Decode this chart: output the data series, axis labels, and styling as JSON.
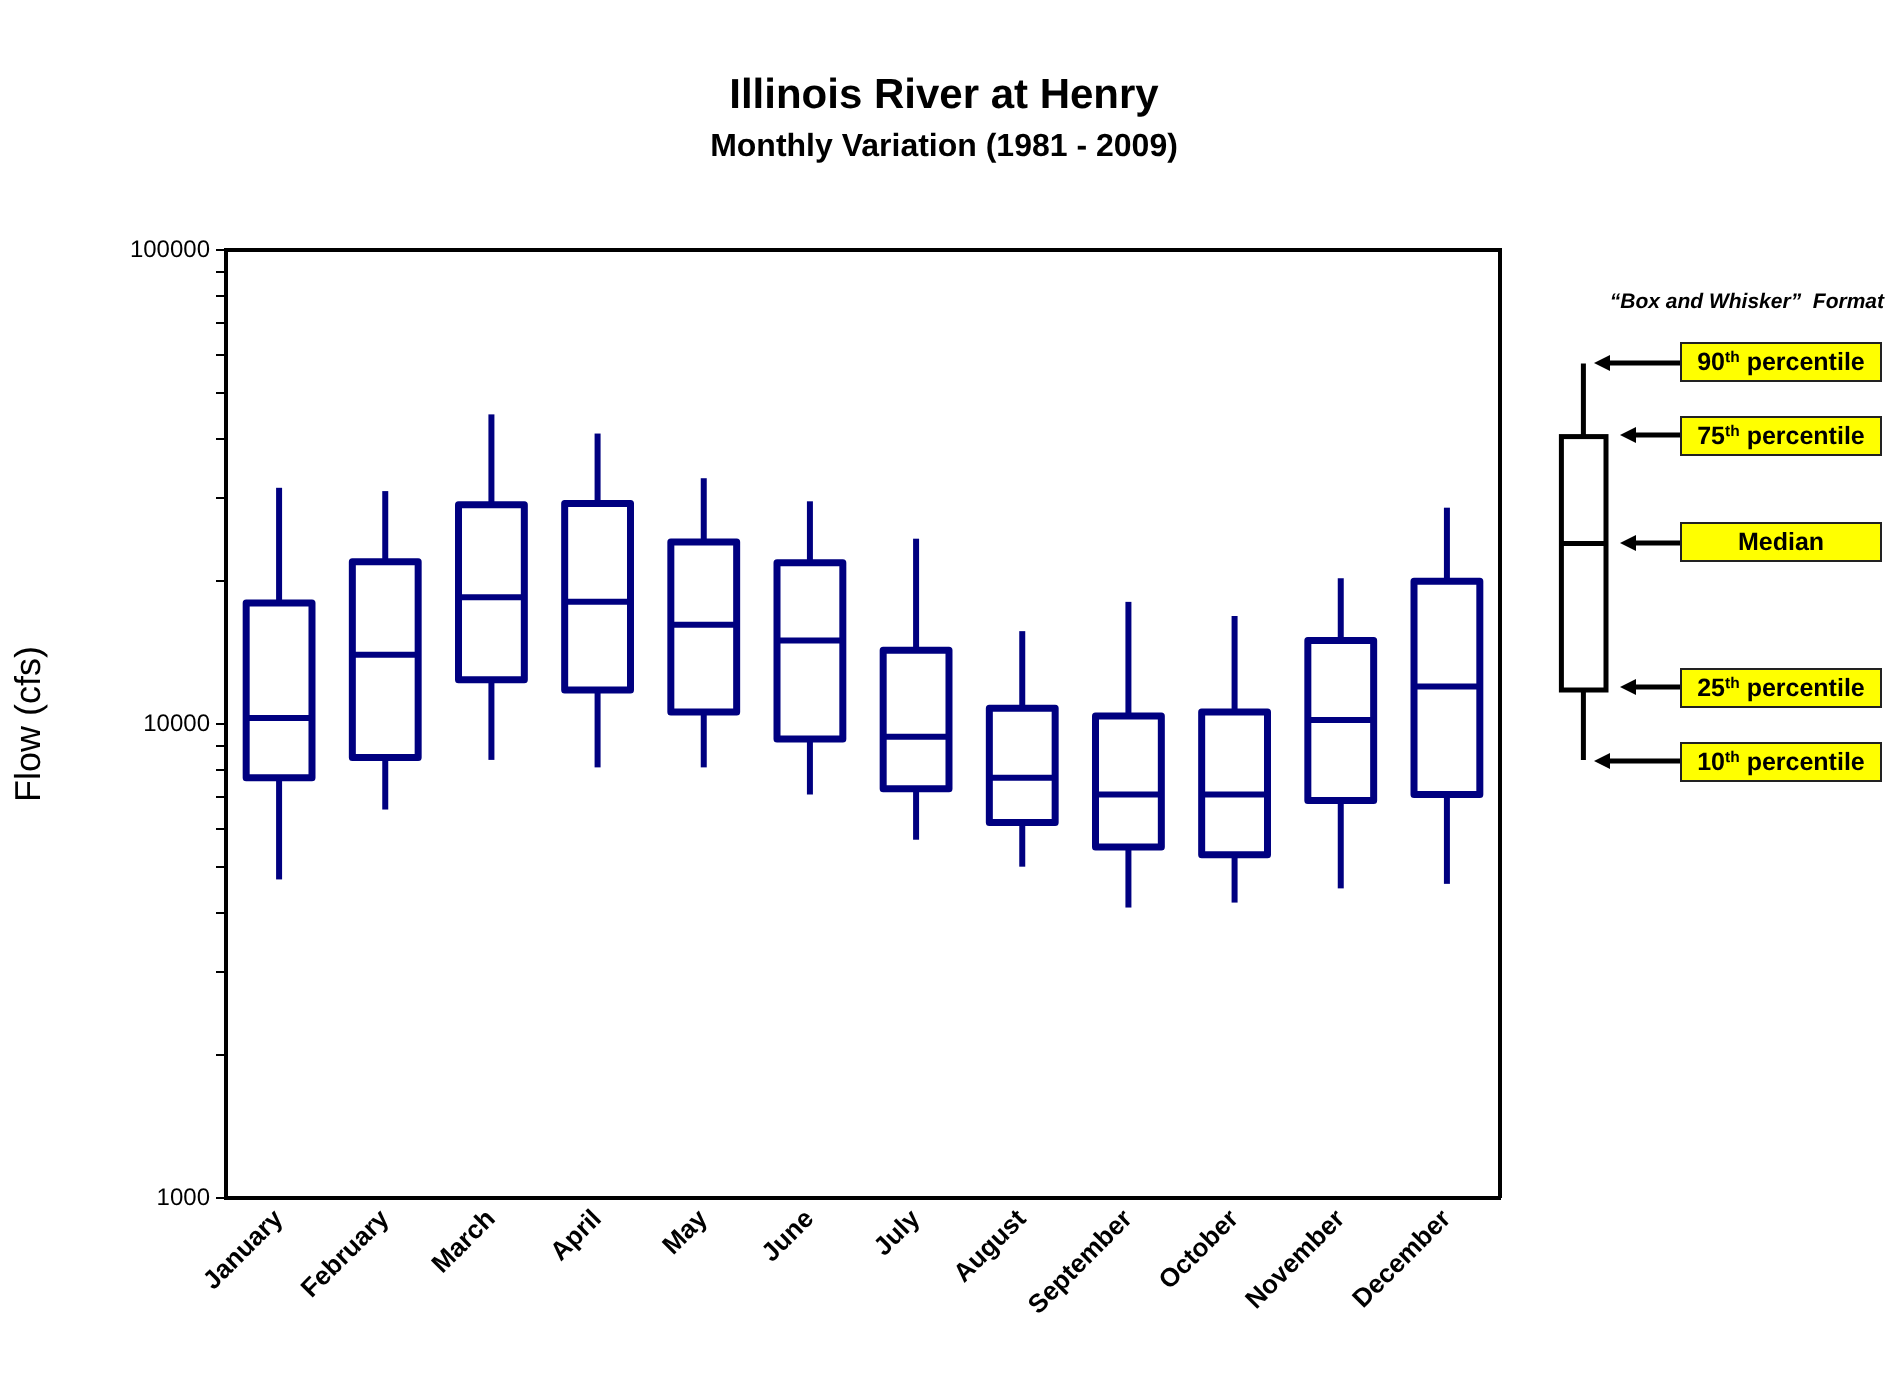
{
  "chart_data": {
    "type": "box",
    "title": "Illinois River at Henry",
    "subtitle": "Monthly Variation (1981 - 2009)",
    "ylabel": "Flow (cfs)",
    "categories": [
      "January",
      "February",
      "March",
      "April",
      "May",
      "June",
      "July",
      "August",
      "September",
      "October",
      "November",
      "December"
    ],
    "boxes": [
      {
        "low": 4700,
        "q1": 7700,
        "median": 10300,
        "q3": 18000,
        "high": 31500
      },
      {
        "low": 6600,
        "q1": 8500,
        "median": 14000,
        "q3": 22000,
        "high": 31000
      },
      {
        "low": 8400,
        "q1": 12400,
        "median": 18500,
        "q3": 29000,
        "high": 45000
      },
      {
        "low": 8100,
        "q1": 11800,
        "median": 18100,
        "q3": 29200,
        "high": 41000
      },
      {
        "low": 8100,
        "q1": 10600,
        "median": 16200,
        "q3": 24200,
        "high": 33000
      },
      {
        "low": 7100,
        "q1": 9300,
        "median": 15000,
        "q3": 21900,
        "high": 29500
      },
      {
        "low": 5700,
        "q1": 7300,
        "median": 9400,
        "q3": 14300,
        "high": 24600
      },
      {
        "low": 5000,
        "q1": 6200,
        "median": 7700,
        "q3": 10800,
        "high": 15700
      },
      {
        "low": 4100,
        "q1": 5500,
        "median": 7100,
        "q3": 10400,
        "high": 18100
      },
      {
        "low": 4200,
        "q1": 5300,
        "median": 7100,
        "q3": 10600,
        "high": 16900
      },
      {
        "low": 4500,
        "q1": 6900,
        "median": 10200,
        "q3": 15000,
        "high": 20300
      },
      {
        "low": 4600,
        "q1": 7100,
        "median": 12000,
        "q3": 20000,
        "high": 28600
      }
    ],
    "color": "#000080",
    "log": true,
    "ylim": [
      1000,
      100000
    ],
    "yticks": [
      1000,
      {
        "value": 2000,
        "label": null
      },
      {
        "value": 3000,
        "label": null
      },
      {
        "value": 4000,
        "label": null
      },
      {
        "value": 5000,
        "label": null
      },
      {
        "value": 6000,
        "label": null
      },
      {
        "value": 7000,
        "label": null
      },
      {
        "value": 8000,
        "label": null
      },
      {
        "value": 9000,
        "label": null
      },
      10000,
      {
        "value": 20000,
        "label": null
      },
      {
        "value": 30000,
        "label": null
      },
      {
        "value": 40000,
        "label": null
      },
      {
        "value": 50000,
        "label": null
      },
      {
        "value": 60000,
        "label": null
      },
      {
        "value": 70000,
        "label": null
      },
      {
        "value": 80000,
        "label": null
      },
      {
        "value": 90000,
        "label": null
      },
      100000
    ],
    "grid": false,
    "annotations": [
      "“Box and Whisker”  Format",
      "90$^{th}$ percentile",
      "75$^{th}$ percentile",
      "Median",
      "25$^{th}$ percentile",
      "10$^{th}$ percentile"
    ]
  }
}
